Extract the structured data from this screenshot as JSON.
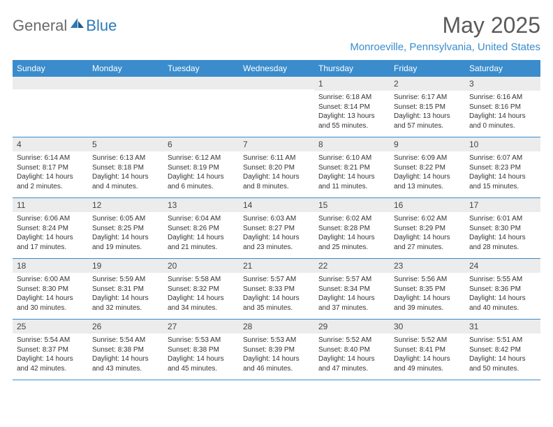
{
  "brand": {
    "part1": "General",
    "part2": "Blue"
  },
  "title": "May 2025",
  "location": "Monroeville, Pennsylvania, United States",
  "colors": {
    "header_bar": "#3a8ccc",
    "daynum_bg": "#ececec",
    "text_body": "#333333",
    "title_gray": "#5a5a5a",
    "logo_gray": "#6a6a6a",
    "logo_blue": "#2a7ab8"
  },
  "weekdays": [
    "Sunday",
    "Monday",
    "Tuesday",
    "Wednesday",
    "Thursday",
    "Friday",
    "Saturday"
  ],
  "weeks": [
    [
      {
        "n": "",
        "sr": "",
        "ss": "",
        "dl": ""
      },
      {
        "n": "",
        "sr": "",
        "ss": "",
        "dl": ""
      },
      {
        "n": "",
        "sr": "",
        "ss": "",
        "dl": ""
      },
      {
        "n": "",
        "sr": "",
        "ss": "",
        "dl": ""
      },
      {
        "n": "1",
        "sr": "Sunrise: 6:18 AM",
        "ss": "Sunset: 8:14 PM",
        "dl": "Daylight: 13 hours and 55 minutes."
      },
      {
        "n": "2",
        "sr": "Sunrise: 6:17 AM",
        "ss": "Sunset: 8:15 PM",
        "dl": "Daylight: 13 hours and 57 minutes."
      },
      {
        "n": "3",
        "sr": "Sunrise: 6:16 AM",
        "ss": "Sunset: 8:16 PM",
        "dl": "Daylight: 14 hours and 0 minutes."
      }
    ],
    [
      {
        "n": "4",
        "sr": "Sunrise: 6:14 AM",
        "ss": "Sunset: 8:17 PM",
        "dl": "Daylight: 14 hours and 2 minutes."
      },
      {
        "n": "5",
        "sr": "Sunrise: 6:13 AM",
        "ss": "Sunset: 8:18 PM",
        "dl": "Daylight: 14 hours and 4 minutes."
      },
      {
        "n": "6",
        "sr": "Sunrise: 6:12 AM",
        "ss": "Sunset: 8:19 PM",
        "dl": "Daylight: 14 hours and 6 minutes."
      },
      {
        "n": "7",
        "sr": "Sunrise: 6:11 AM",
        "ss": "Sunset: 8:20 PM",
        "dl": "Daylight: 14 hours and 8 minutes."
      },
      {
        "n": "8",
        "sr": "Sunrise: 6:10 AM",
        "ss": "Sunset: 8:21 PM",
        "dl": "Daylight: 14 hours and 11 minutes."
      },
      {
        "n": "9",
        "sr": "Sunrise: 6:09 AM",
        "ss": "Sunset: 8:22 PM",
        "dl": "Daylight: 14 hours and 13 minutes."
      },
      {
        "n": "10",
        "sr": "Sunrise: 6:07 AM",
        "ss": "Sunset: 8:23 PM",
        "dl": "Daylight: 14 hours and 15 minutes."
      }
    ],
    [
      {
        "n": "11",
        "sr": "Sunrise: 6:06 AM",
        "ss": "Sunset: 8:24 PM",
        "dl": "Daylight: 14 hours and 17 minutes."
      },
      {
        "n": "12",
        "sr": "Sunrise: 6:05 AM",
        "ss": "Sunset: 8:25 PM",
        "dl": "Daylight: 14 hours and 19 minutes."
      },
      {
        "n": "13",
        "sr": "Sunrise: 6:04 AM",
        "ss": "Sunset: 8:26 PM",
        "dl": "Daylight: 14 hours and 21 minutes."
      },
      {
        "n": "14",
        "sr": "Sunrise: 6:03 AM",
        "ss": "Sunset: 8:27 PM",
        "dl": "Daylight: 14 hours and 23 minutes."
      },
      {
        "n": "15",
        "sr": "Sunrise: 6:02 AM",
        "ss": "Sunset: 8:28 PM",
        "dl": "Daylight: 14 hours and 25 minutes."
      },
      {
        "n": "16",
        "sr": "Sunrise: 6:02 AM",
        "ss": "Sunset: 8:29 PM",
        "dl": "Daylight: 14 hours and 27 minutes."
      },
      {
        "n": "17",
        "sr": "Sunrise: 6:01 AM",
        "ss": "Sunset: 8:30 PM",
        "dl": "Daylight: 14 hours and 28 minutes."
      }
    ],
    [
      {
        "n": "18",
        "sr": "Sunrise: 6:00 AM",
        "ss": "Sunset: 8:30 PM",
        "dl": "Daylight: 14 hours and 30 minutes."
      },
      {
        "n": "19",
        "sr": "Sunrise: 5:59 AM",
        "ss": "Sunset: 8:31 PM",
        "dl": "Daylight: 14 hours and 32 minutes."
      },
      {
        "n": "20",
        "sr": "Sunrise: 5:58 AM",
        "ss": "Sunset: 8:32 PM",
        "dl": "Daylight: 14 hours and 34 minutes."
      },
      {
        "n": "21",
        "sr": "Sunrise: 5:57 AM",
        "ss": "Sunset: 8:33 PM",
        "dl": "Daylight: 14 hours and 35 minutes."
      },
      {
        "n": "22",
        "sr": "Sunrise: 5:57 AM",
        "ss": "Sunset: 8:34 PM",
        "dl": "Daylight: 14 hours and 37 minutes."
      },
      {
        "n": "23",
        "sr": "Sunrise: 5:56 AM",
        "ss": "Sunset: 8:35 PM",
        "dl": "Daylight: 14 hours and 39 minutes."
      },
      {
        "n": "24",
        "sr": "Sunrise: 5:55 AM",
        "ss": "Sunset: 8:36 PM",
        "dl": "Daylight: 14 hours and 40 minutes."
      }
    ],
    [
      {
        "n": "25",
        "sr": "Sunrise: 5:54 AM",
        "ss": "Sunset: 8:37 PM",
        "dl": "Daylight: 14 hours and 42 minutes."
      },
      {
        "n": "26",
        "sr": "Sunrise: 5:54 AM",
        "ss": "Sunset: 8:38 PM",
        "dl": "Daylight: 14 hours and 43 minutes."
      },
      {
        "n": "27",
        "sr": "Sunrise: 5:53 AM",
        "ss": "Sunset: 8:38 PM",
        "dl": "Daylight: 14 hours and 45 minutes."
      },
      {
        "n": "28",
        "sr": "Sunrise: 5:53 AM",
        "ss": "Sunset: 8:39 PM",
        "dl": "Daylight: 14 hours and 46 minutes."
      },
      {
        "n": "29",
        "sr": "Sunrise: 5:52 AM",
        "ss": "Sunset: 8:40 PM",
        "dl": "Daylight: 14 hours and 47 minutes."
      },
      {
        "n": "30",
        "sr": "Sunrise: 5:52 AM",
        "ss": "Sunset: 8:41 PM",
        "dl": "Daylight: 14 hours and 49 minutes."
      },
      {
        "n": "31",
        "sr": "Sunrise: 5:51 AM",
        "ss": "Sunset: 8:42 PM",
        "dl": "Daylight: 14 hours and 50 minutes."
      }
    ]
  ]
}
